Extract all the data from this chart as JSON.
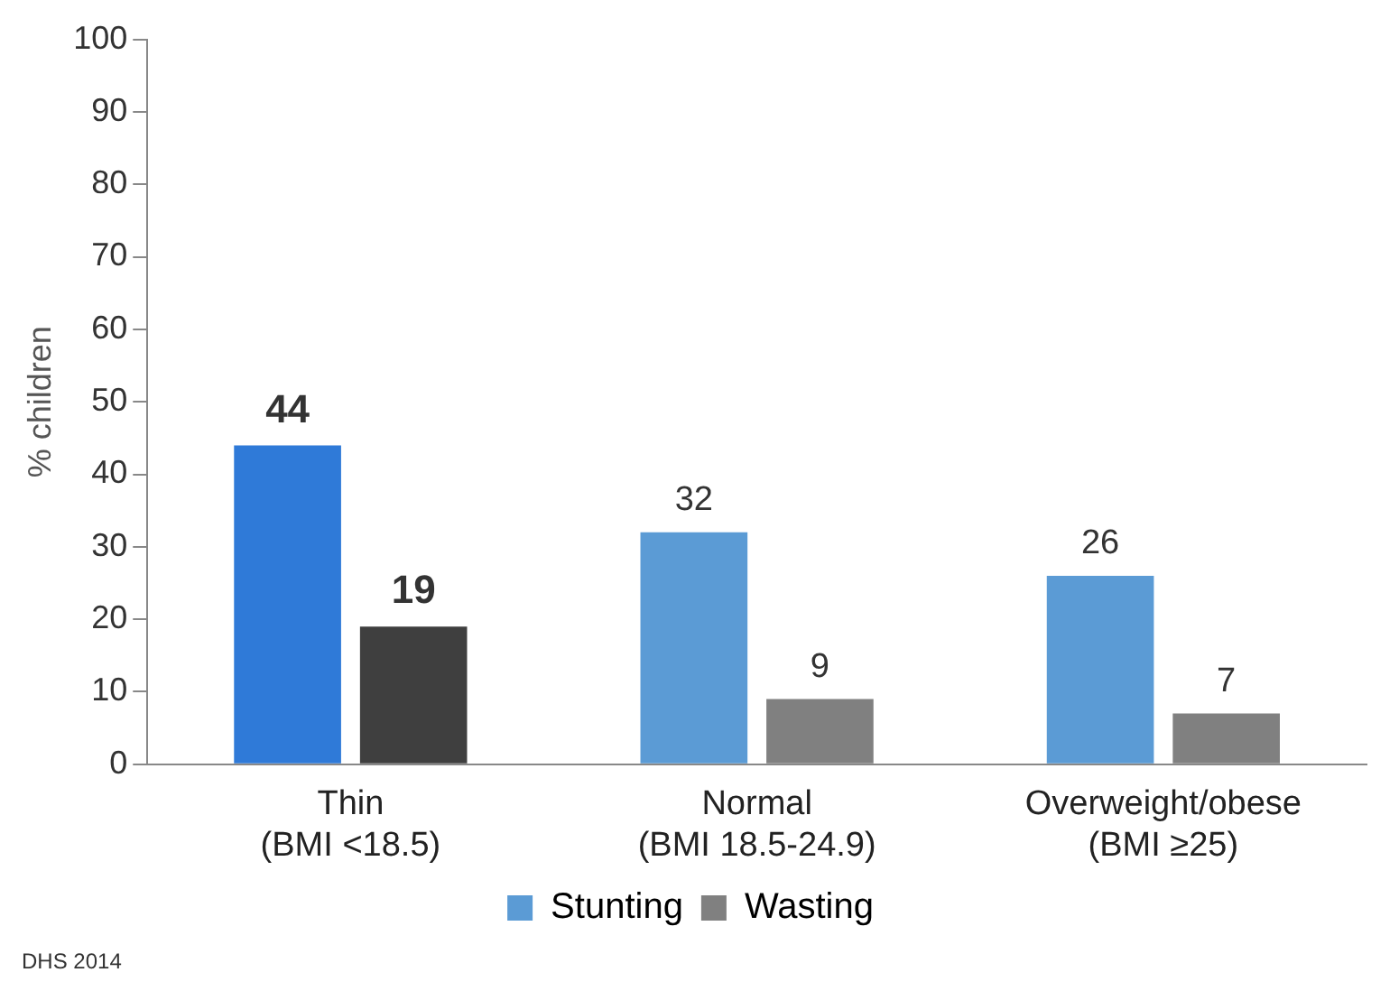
{
  "chart_data": {
    "type": "bar",
    "ylabel": "% children",
    "categories": [
      "Thin\n(BMI <18.5)",
      "Normal\n(BMI 18.5-24.9)",
      "Overweight/obese\n(BMI ≥25)"
    ],
    "series": [
      {
        "name": "Stunting",
        "color": "#5b9bd5",
        "colors": [
          "#2f7ad8",
          "#5b9bd5",
          "#5b9bd5"
        ],
        "values": [
          44,
          32,
          26
        ]
      },
      {
        "name": "Wasting",
        "color": "#808080",
        "colors": [
          "#3f3f3f",
          "#808080",
          "#808080"
        ],
        "values": [
          19,
          9,
          7
        ]
      }
    ],
    "ylim": [
      0,
      100
    ],
    "yticks": [
      0,
      10,
      20,
      30,
      40,
      50,
      60,
      70,
      80,
      90,
      100
    ],
    "grid": false,
    "legend": "bottom",
    "data_labels": true,
    "annotations": [
      "DHS 2014"
    ]
  }
}
